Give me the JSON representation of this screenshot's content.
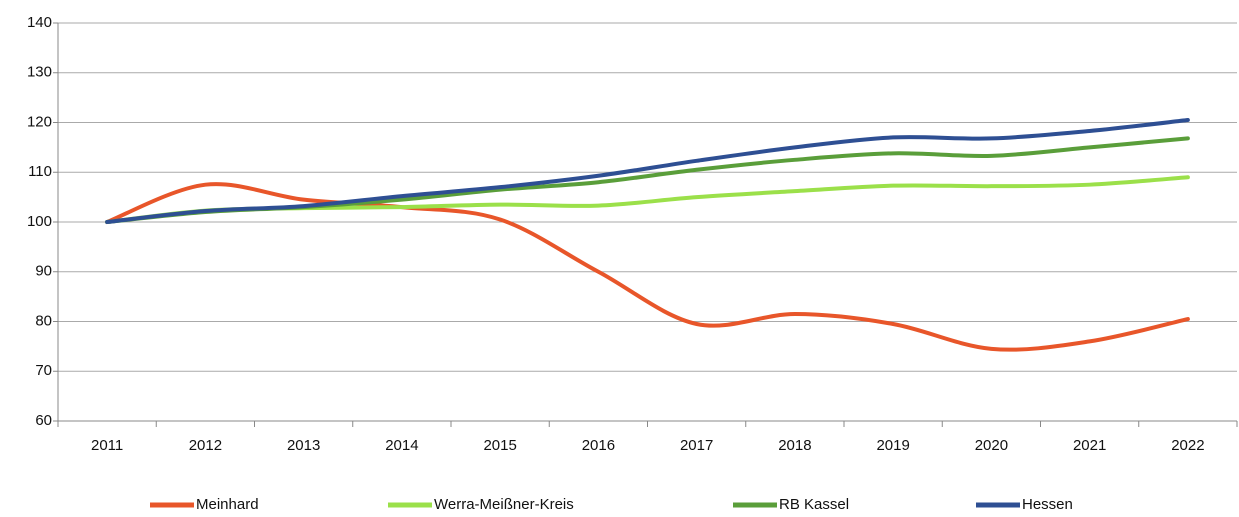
{
  "chart_data": {
    "type": "line",
    "categories": [
      "2011",
      "2012",
      "2013",
      "2014",
      "2015",
      "2016",
      "2017",
      "2018",
      "2019",
      "2020",
      "2021",
      "2022"
    ],
    "series": [
      {
        "name": "Meinhard",
        "color": "#e8562a",
        "values": [
          100,
          107.5,
          104.5,
          103,
          100.5,
          90,
          79.5,
          81.5,
          79.5,
          74.5,
          76,
          80.5
        ]
      },
      {
        "name": "Werra-Meißner-Kreis",
        "color": "#9be04a",
        "values": [
          100,
          102.3,
          102.8,
          103,
          103.5,
          103.3,
          105,
          106.2,
          107.3,
          107.2,
          107.5,
          109
        ]
      },
      {
        "name": "RB Kassel",
        "color": "#5a9e3a",
        "values": [
          100,
          102,
          103,
          104.5,
          106.5,
          108,
          110.5,
          112.5,
          113.8,
          113.3,
          115,
          116.8
        ]
      },
      {
        "name": "Hessen",
        "color": "#2e4f93",
        "values": [
          100,
          102.2,
          103.2,
          105.2,
          107,
          109.3,
          112.3,
          115,
          117,
          116.8,
          118.3,
          120.5
        ]
      }
    ],
    "ylim": [
      60,
      140
    ],
    "yticks": [
      60,
      70,
      80,
      90,
      100,
      110,
      120,
      130,
      140
    ],
    "grid": true,
    "smooth": true,
    "legend": "bottom"
  }
}
